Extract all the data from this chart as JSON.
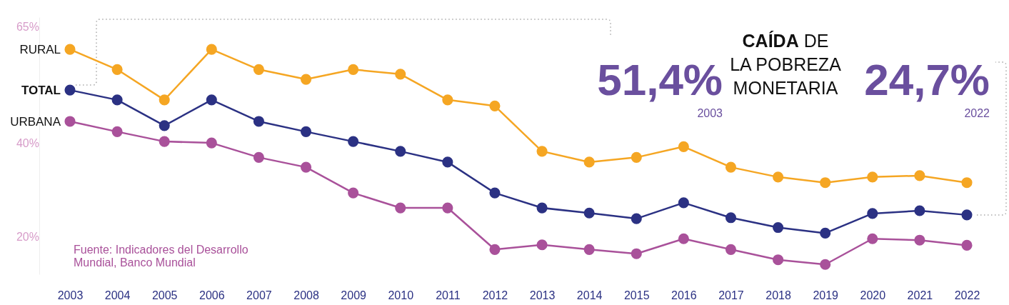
{
  "chart_data": {
    "type": "line",
    "title": "CAÍDA DE LA POBREZA MONETARIA",
    "categories": [
      "2003",
      "2004",
      "2005",
      "2006",
      "2007",
      "2008",
      "2009",
      "2010",
      "2011",
      "2012",
      "2013",
      "2014",
      "2015",
      "2016",
      "2017",
      "2018",
      "2019",
      "2020",
      "2021",
      "2022"
    ],
    "series": [
      {
        "name": "RURAL",
        "color": "#f5a623",
        "values": [
          60.1,
          55.8,
          49.3,
          60.1,
          55.8,
          53.7,
          55.8,
          54.8,
          49.3,
          48.0,
          38.3,
          36.0,
          37.0,
          39.3,
          34.9,
          32.8,
          31.6,
          32.8,
          33.1,
          31.6
        ]
      },
      {
        "name": "TOTAL",
        "color": "#2b3183",
        "values": [
          51.4,
          49.3,
          43.8,
          49.3,
          44.7,
          42.5,
          40.4,
          38.3,
          36.0,
          29.4,
          26.2,
          25.1,
          23.9,
          27.3,
          24.1,
          22.0,
          20.8,
          25.0,
          25.6,
          24.7
        ]
      },
      {
        "name": "URBANA",
        "color": "#a9519a",
        "values": [
          44.7,
          42.5,
          40.4,
          40.1,
          37.0,
          34.9,
          29.4,
          26.2,
          26.2,
          17.3,
          18.3,
          17.3,
          16.4,
          19.6,
          17.3,
          15.1,
          14.1,
          19.6,
          19.3,
          18.2
        ]
      }
    ],
    "ylim": [
      12,
      67
    ],
    "yticks": [
      {
        "value": 20,
        "label": "20%"
      },
      {
        "value": 40,
        "label": "40%"
      },
      {
        "value": 65,
        "label": "65%"
      }
    ],
    "grid": false,
    "legend": false,
    "marker": "circle",
    "line_style": "solid",
    "annotations": [
      "51,4%",
      "2003",
      "24,7%",
      "2022",
      "Fuente: Indicadores del Desarrollo Mundial, Banco Mundial"
    ]
  }
}
